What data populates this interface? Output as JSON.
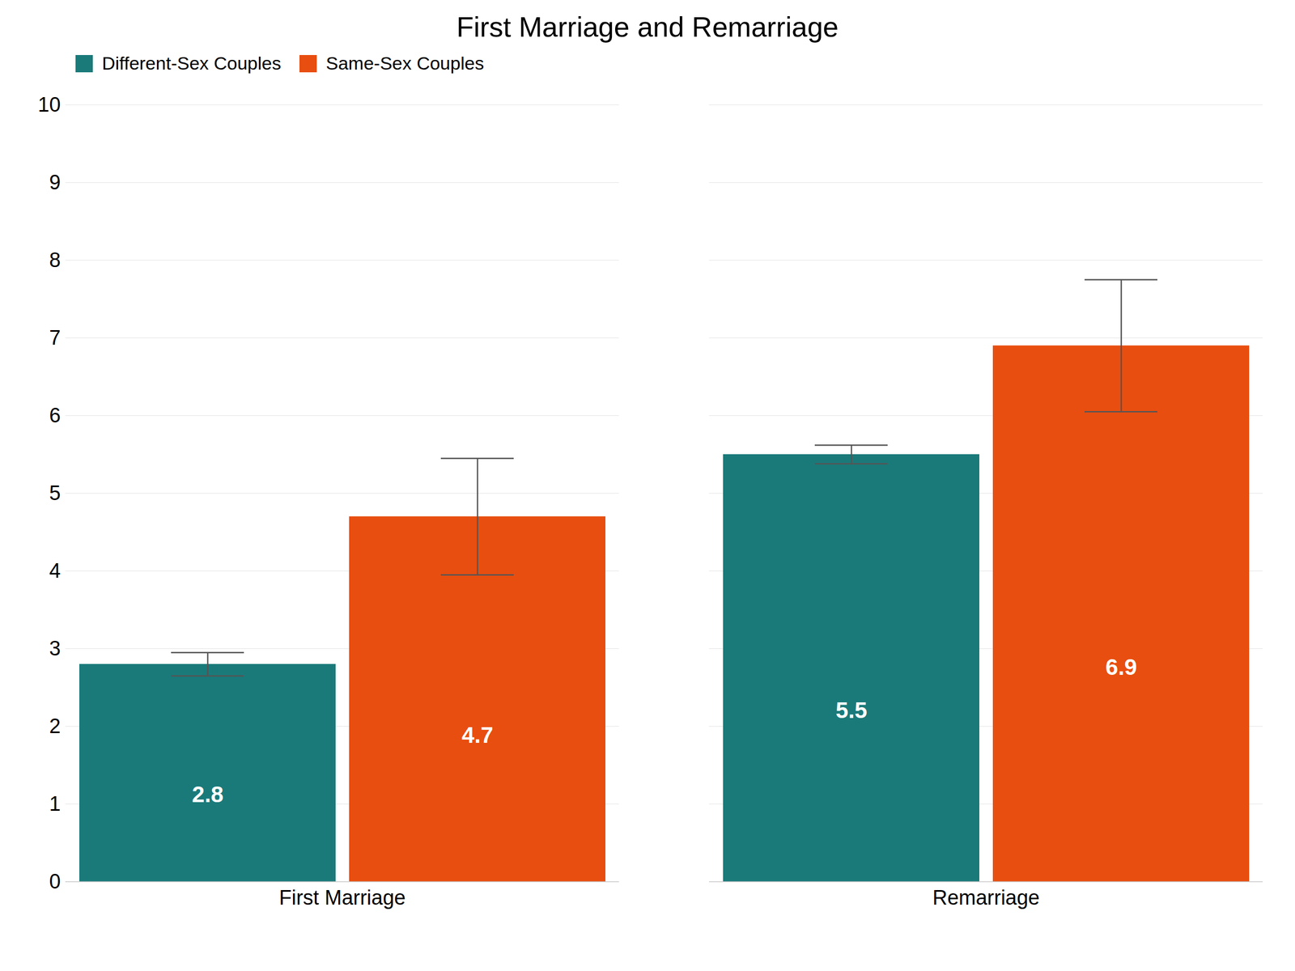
{
  "chart_data": {
    "type": "bar",
    "title": "First Marriage and Remarriage",
    "categories": [
      "First Marriage",
      "Remarriage"
    ],
    "series": [
      {
        "name": "Different-Sex Couples",
        "color": "#1a7a7a",
        "values": [
          2.8,
          5.5
        ],
        "errors": [
          0.15,
          0.12
        ]
      },
      {
        "name": "Same-Sex Couples",
        "color": "#e84e0f",
        "values": [
          4.7,
          6.9
        ],
        "errors": [
          0.75,
          0.85
        ]
      }
    ],
    "ylim": [
      0,
      10
    ],
    "yticks": [
      0,
      1,
      2,
      3,
      4,
      5,
      6,
      7,
      8,
      9,
      10
    ],
    "grid": true,
    "legend": "upper left",
    "data_labels": true
  }
}
